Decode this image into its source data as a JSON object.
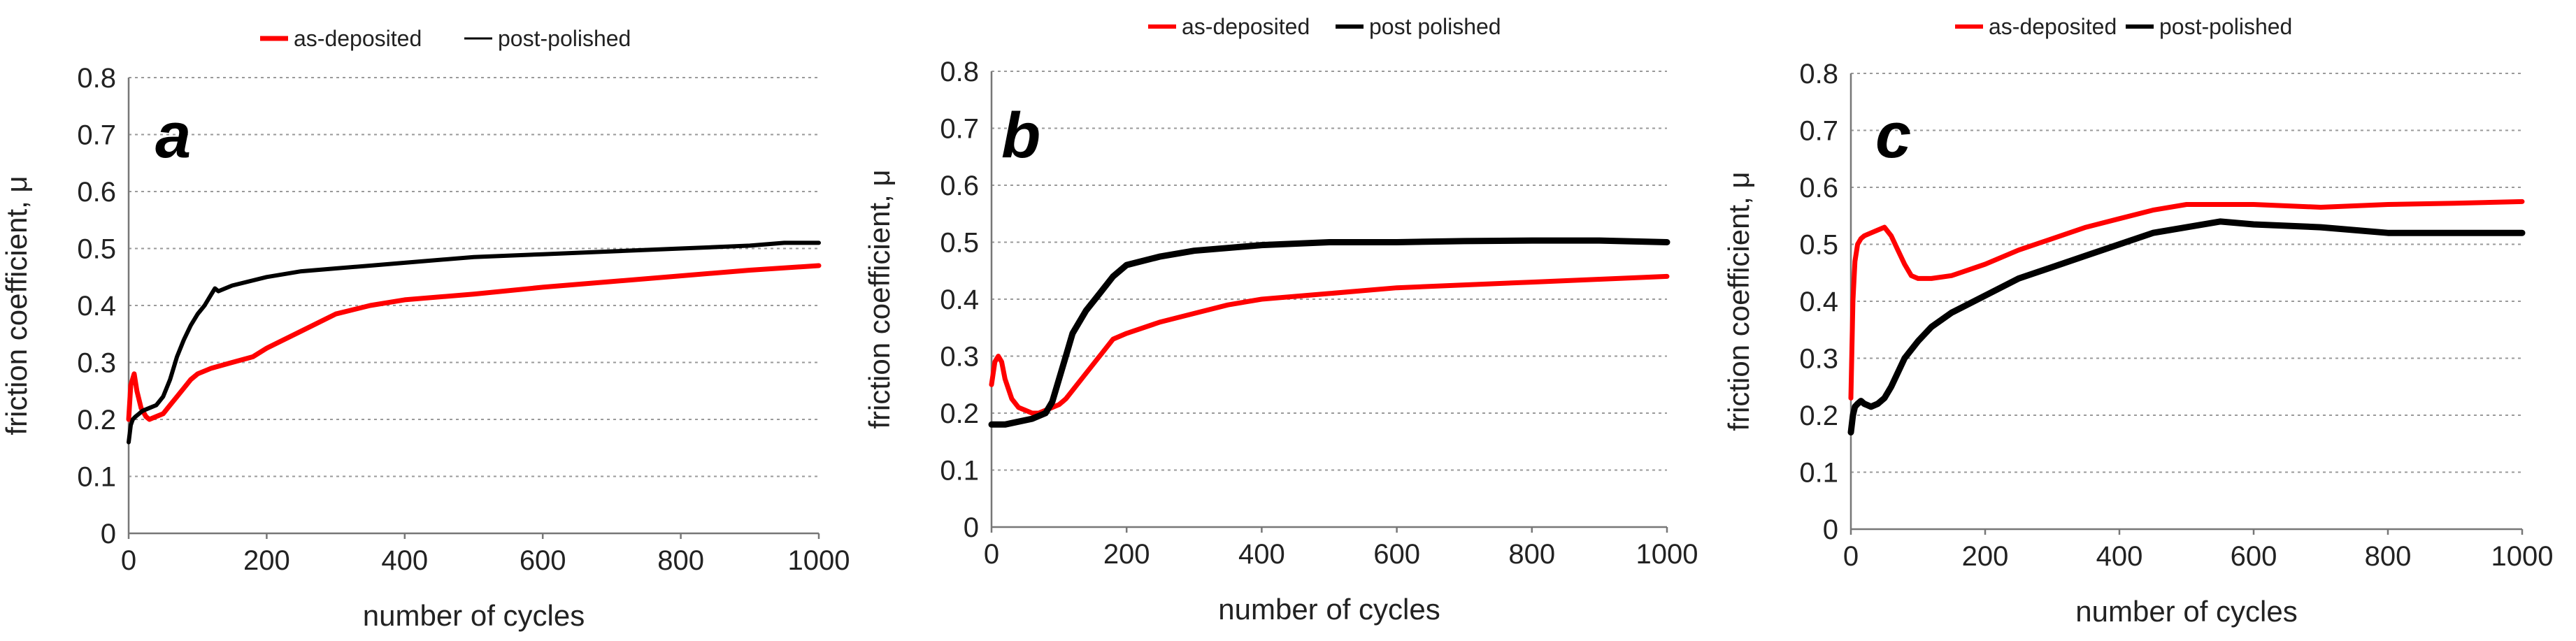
{
  "colors": {
    "as_deposited": "#ff0000",
    "post_polished": "#000000"
  },
  "chart_data": [
    {
      "type": "line",
      "panel": "a",
      "xlabel": "number of cycles",
      "ylabel": "friction coefficient, μ",
      "xlim": [
        0,
        1000
      ],
      "ylim": [
        0,
        0.8
      ],
      "xticks": [
        "0",
        "200",
        "400",
        "600",
        "800",
        "1000"
      ],
      "yticks": [
        "0",
        "0.1",
        "0.2",
        "0.3",
        "0.4",
        "0.5",
        "0.6",
        "0.7",
        "0.8"
      ],
      "grid": true,
      "legend_position": "top",
      "series": [
        {
          "name": "as-deposited",
          "color": "#ff0000",
          "x": [
            0,
            3,
            8,
            12,
            18,
            25,
            30,
            40,
            50,
            60,
            70,
            80,
            90,
            100,
            120,
            150,
            180,
            200,
            250,
            300,
            350,
            400,
            500,
            600,
            700,
            800,
            900,
            1000
          ],
          "y": [
            0.2,
            0.26,
            0.28,
            0.25,
            0.22,
            0.205,
            0.2,
            0.205,
            0.21,
            0.225,
            0.24,
            0.255,
            0.27,
            0.28,
            0.29,
            0.3,
            0.31,
            0.325,
            0.355,
            0.385,
            0.4,
            0.41,
            0.42,
            0.432,
            0.442,
            0.452,
            0.462,
            0.47
          ]
        },
        {
          "name": "post-polished",
          "color": "#000000",
          "x": [
            0,
            3,
            6,
            10,
            15,
            20,
            30,
            40,
            50,
            60,
            70,
            80,
            90,
            100,
            110,
            120,
            125,
            130,
            150,
            200,
            250,
            300,
            350,
            400,
            500,
            600,
            700,
            800,
            900,
            950,
            1000
          ],
          "y": [
            0.16,
            0.19,
            0.2,
            0.205,
            0.21,
            0.215,
            0.22,
            0.225,
            0.24,
            0.27,
            0.31,
            0.34,
            0.365,
            0.385,
            0.4,
            0.42,
            0.43,
            0.425,
            0.435,
            0.45,
            0.46,
            0.465,
            0.47,
            0.475,
            0.485,
            0.49,
            0.495,
            0.5,
            0.505,
            0.51,
            0.51
          ]
        }
      ]
    },
    {
      "type": "line",
      "panel": "b",
      "xlabel": "number of cycles",
      "ylabel": "friction coefficient, μ",
      "xlim": [
        0,
        1000
      ],
      "ylim": [
        0,
        0.8
      ],
      "xticks": [
        "0",
        "200",
        "400",
        "600",
        "800",
        "1000"
      ],
      "yticks": [
        "0",
        "0.1",
        "0.2",
        "0.3",
        "0.4",
        "0.5",
        "0.6",
        "0.7",
        "0.8"
      ],
      "grid": true,
      "legend_position": "top",
      "series": [
        {
          "name": "as-deposited",
          "color": "#ff0000",
          "x": [
            0,
            5,
            10,
            15,
            20,
            30,
            40,
            50,
            60,
            70,
            80,
            90,
            100,
            110,
            120,
            140,
            160,
            180,
            200,
            250,
            300,
            350,
            400,
            500,
            600,
            700,
            800,
            900,
            1000
          ],
          "y": [
            0.25,
            0.29,
            0.3,
            0.29,
            0.26,
            0.225,
            0.21,
            0.205,
            0.2,
            0.2,
            0.205,
            0.21,
            0.215,
            0.225,
            0.24,
            0.27,
            0.3,
            0.33,
            0.34,
            0.36,
            0.375,
            0.39,
            0.4,
            0.41,
            0.42,
            0.425,
            0.43,
            0.435,
            0.44
          ]
        },
        {
          "name": "post polished",
          "color": "#000000",
          "x": [
            0,
            10,
            20,
            40,
            60,
            80,
            90,
            100,
            110,
            120,
            140,
            160,
            180,
            200,
            250,
            300,
            350,
            400,
            500,
            600,
            700,
            800,
            900,
            1000
          ],
          "y": [
            0.18,
            0.18,
            0.18,
            0.185,
            0.19,
            0.2,
            0.22,
            0.26,
            0.3,
            0.34,
            0.38,
            0.41,
            0.44,
            0.46,
            0.475,
            0.485,
            0.49,
            0.495,
            0.5,
            0.5,
            0.502,
            0.503,
            0.503,
            0.5
          ]
        }
      ]
    },
    {
      "type": "line",
      "panel": "c",
      "xlabel": "number of cycles",
      "ylabel": "friction coefficient, μ",
      "xlim": [
        0,
        1000
      ],
      "ylim": [
        0,
        0.8
      ],
      "xticks": [
        "0",
        "200",
        "400",
        "600",
        "800",
        "1000"
      ],
      "yticks": [
        "0",
        "0.1",
        "0.2",
        "0.3",
        "0.4",
        "0.5",
        "0.6",
        "0.7",
        "0.8"
      ],
      "grid": true,
      "legend_position": "top",
      "series": [
        {
          "name": "as-deposited",
          "color": "#ff0000",
          "x": [
            0,
            3,
            6,
            10,
            15,
            20,
            30,
            40,
            50,
            60,
            70,
            80,
            90,
            100,
            120,
            150,
            200,
            250,
            300,
            350,
            400,
            450,
            500,
            600,
            700,
            800,
            900,
            1000
          ],
          "y": [
            0.23,
            0.4,
            0.47,
            0.5,
            0.51,
            0.515,
            0.52,
            0.525,
            0.53,
            0.515,
            0.49,
            0.465,
            0.445,
            0.44,
            0.44,
            0.445,
            0.465,
            0.49,
            0.51,
            0.53,
            0.545,
            0.56,
            0.57,
            0.57,
            0.565,
            0.57,
            0.572,
            0.575
          ]
        },
        {
          "name": "post-polished",
          "color": "#000000",
          "x": [
            0,
            3,
            6,
            10,
            15,
            20,
            30,
            40,
            50,
            60,
            70,
            80,
            100,
            120,
            150,
            200,
            250,
            300,
            350,
            400,
            450,
            500,
            550,
            600,
            700,
            800,
            900,
            1000
          ],
          "y": [
            0.17,
            0.2,
            0.215,
            0.22,
            0.225,
            0.22,
            0.215,
            0.22,
            0.23,
            0.25,
            0.275,
            0.3,
            0.33,
            0.355,
            0.38,
            0.41,
            0.44,
            0.46,
            0.48,
            0.5,
            0.52,
            0.53,
            0.54,
            0.535,
            0.53,
            0.52,
            0.52,
            0.52
          ]
        }
      ]
    }
  ]
}
